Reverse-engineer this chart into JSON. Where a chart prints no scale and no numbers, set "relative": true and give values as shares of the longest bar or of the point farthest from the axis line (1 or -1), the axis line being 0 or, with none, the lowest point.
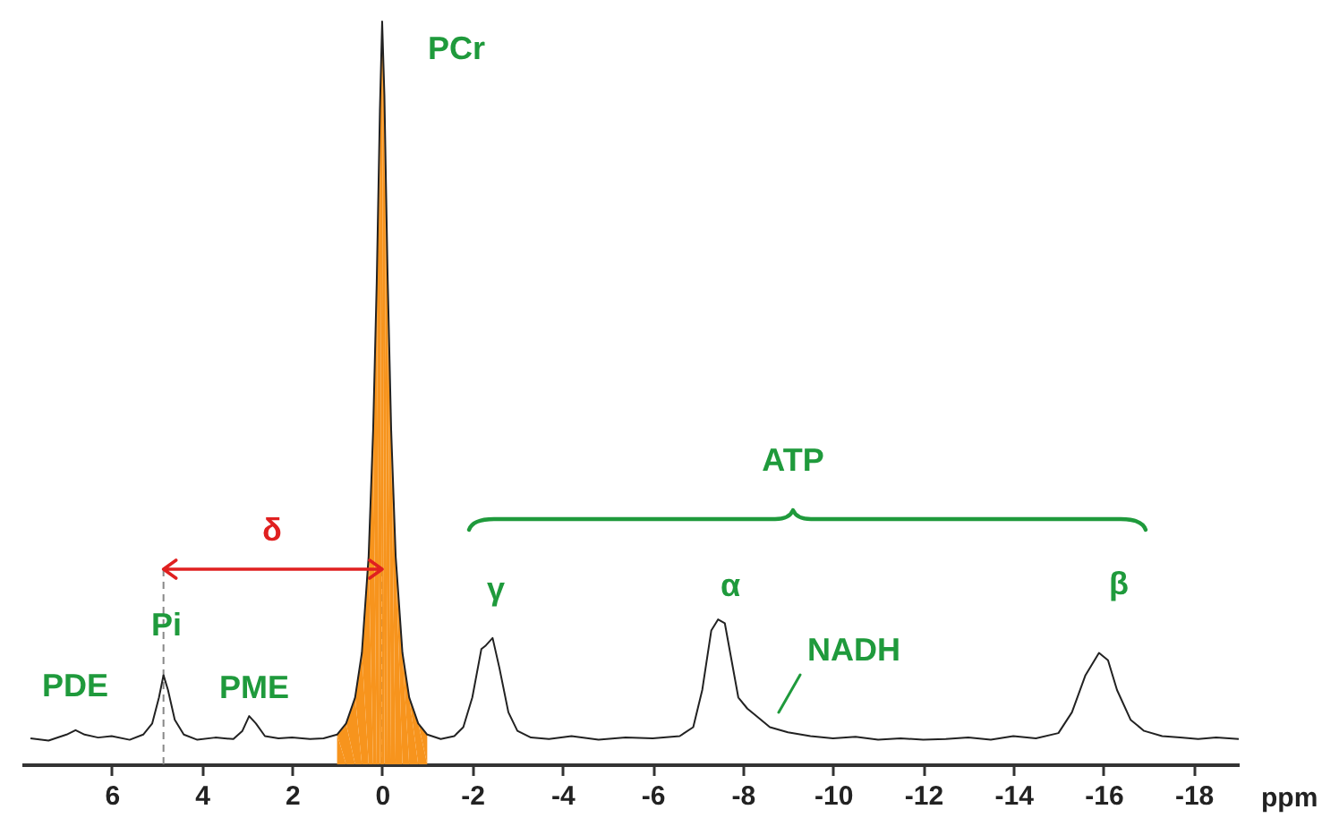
{
  "chart_data": {
    "type": "line",
    "relative": true,
    "xlabel": "ppm",
    "xlim": [
      8,
      -19
    ],
    "xticks": [
      6,
      4,
      2,
      0,
      -2,
      -4,
      -6,
      -8,
      -10,
      -12,
      -14,
      -16,
      -18
    ],
    "series": [
      {
        "type": "area",
        "color": "#f7941d",
        "x": [
          1.0,
          0.8,
          0.6,
          0.45,
          0.3,
          0.2,
          0.12,
          0.05,
          0,
          -0.05,
          -0.12,
          -0.2,
          -0.3,
          -0.45,
          -0.6,
          -0.8,
          -1.0
        ],
        "values": [
          0.04,
          0.055,
          0.09,
          0.15,
          0.28,
          0.45,
          0.65,
          0.88,
          1.0,
          0.9,
          0.66,
          0.45,
          0.28,
          0.15,
          0.09,
          0.055,
          0.04
        ]
      },
      {
        "color": "#222222",
        "x": [
          7.8,
          7.4,
          7.0,
          6.8,
          6.6,
          6.3,
          6.0,
          5.6,
          5.3,
          5.1,
          4.95,
          4.85,
          4.75,
          4.6,
          4.4,
          4.1,
          3.7,
          3.3,
          3.1,
          2.95,
          2.8,
          2.6,
          2.3,
          2.0,
          1.6,
          1.3,
          1.0,
          0.8,
          0.6,
          0.45,
          0.3,
          0.2,
          0.12,
          0.05,
          0,
          -0.05,
          -0.12,
          -0.2,
          -0.3,
          -0.45,
          -0.6,
          -0.8,
          -1.0,
          -1.3,
          -1.6,
          -1.8,
          -2.0,
          -2.2,
          -2.3,
          -2.45,
          -2.6,
          -2.8,
          -3.0,
          -3.3,
          -3.7,
          -4.2,
          -4.8,
          -5.4,
          -6.0,
          -6.6,
          -6.9,
          -7.1,
          -7.3,
          -7.45,
          -7.6,
          -7.75,
          -7.9,
          -8.1,
          -8.3,
          -8.6,
          -9.0,
          -9.5,
          -10,
          -10.5,
          -11,
          -11.5,
          -12,
          -12.5,
          -13,
          -13.5,
          -14,
          -14.5,
          -15.0,
          -15.3,
          -15.6,
          -15.9,
          -16.1,
          -16.3,
          -16.6,
          -16.9,
          -17.3,
          -17.7,
          -18.1,
          -18.5,
          -19.0
        ],
        "values": [
          0.035,
          0.032,
          0.04,
          0.046,
          0.04,
          0.036,
          0.038,
          0.033,
          0.04,
          0.055,
          0.09,
          0.12,
          0.1,
          0.06,
          0.04,
          0.033,
          0.036,
          0.034,
          0.045,
          0.065,
          0.055,
          0.038,
          0.035,
          0.036,
          0.034,
          0.035,
          0.04,
          0.055,
          0.09,
          0.15,
          0.28,
          0.45,
          0.65,
          0.88,
          1.0,
          0.9,
          0.66,
          0.45,
          0.28,
          0.15,
          0.09,
          0.055,
          0.04,
          0.034,
          0.038,
          0.05,
          0.09,
          0.155,
          0.16,
          0.17,
          0.13,
          0.07,
          0.045,
          0.036,
          0.034,
          0.038,
          0.033,
          0.036,
          0.035,
          0.038,
          0.05,
          0.1,
          0.18,
          0.195,
          0.19,
          0.14,
          0.09,
          0.075,
          0.065,
          0.05,
          0.043,
          0.038,
          0.035,
          0.037,
          0.033,
          0.035,
          0.033,
          0.034,
          0.036,
          0.033,
          0.038,
          0.035,
          0.042,
          0.07,
          0.12,
          0.15,
          0.14,
          0.1,
          0.06,
          0.045,
          0.038,
          0.036,
          0.034,
          0.036,
          0.034
        ]
      }
    ],
    "ref_lines": [
      {
        "axis": "x",
        "value": 4.85,
        "label": null,
        "color": "#888888",
        "line_style": "dashed"
      },
      {
        "axis": "x",
        "value": 0,
        "label": null,
        "color": "#888888",
        "line_style": "dashed"
      }
    ],
    "annotations": [
      "PCr",
      "PDE",
      "Pi",
      "PME",
      "δ",
      "ATP",
      "γ",
      "α",
      "β",
      "NADH"
    ]
  }
}
